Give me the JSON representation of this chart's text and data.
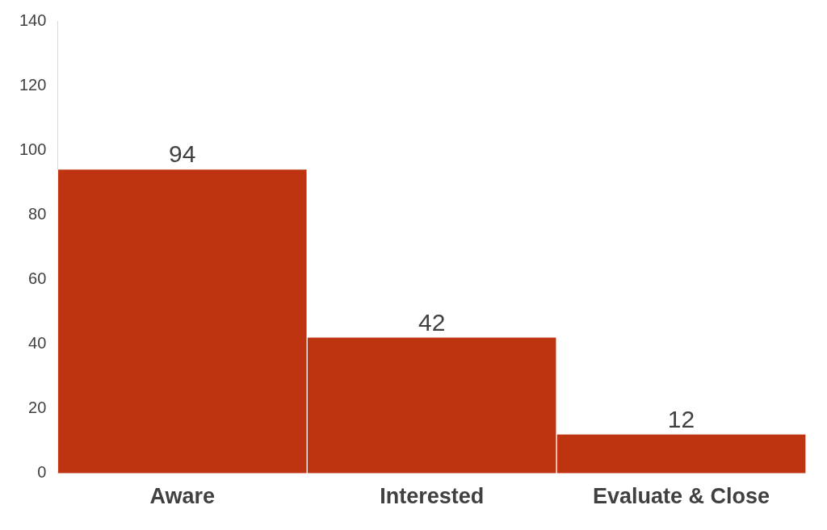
{
  "chart_data": {
    "type": "bar",
    "categories": [
      "Aware",
      "Interested",
      "Evaluate & Close"
    ],
    "values": [
      94,
      42,
      12
    ],
    "color": "#bf3410",
    "ylim": [
      0,
      140
    ],
    "yticks": [
      0,
      20,
      40,
      60,
      80,
      100,
      120,
      140
    ],
    "grid": false,
    "legend": false,
    "data_labels": true
  }
}
